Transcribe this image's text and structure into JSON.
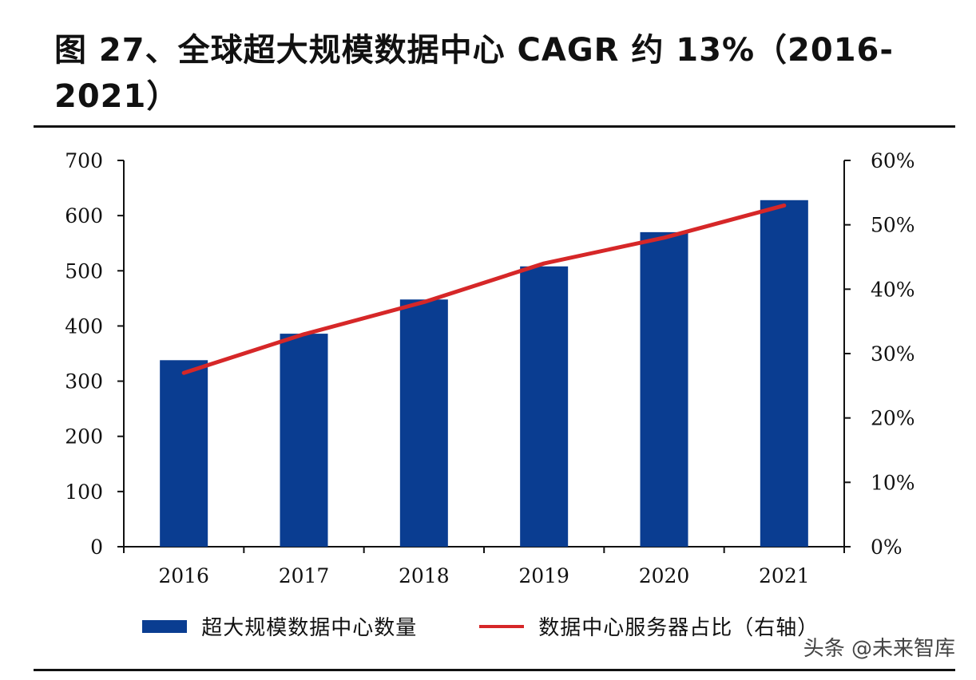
{
  "title": "图 27、全球超大规模数据中心 CAGR 约 13%（2016-2021）",
  "watermark": "头条 @未来智库",
  "colors": {
    "bar": "#0a3d91",
    "line": "#d62728",
    "axis": "#111111"
  },
  "chart_data": {
    "type": "bar",
    "categories": [
      "2016",
      "2017",
      "2018",
      "2019",
      "2020",
      "2021"
    ],
    "series": [
      {
        "name": "超大规模数据中心数量",
        "type": "bar",
        "axis": "left",
        "values": [
          338,
          386,
          448,
          508,
          570,
          628
        ]
      },
      {
        "name": "数据中心服务器占比（右轴）",
        "type": "line",
        "axis": "right",
        "values": [
          0.27,
          0.33,
          0.38,
          0.44,
          0.48,
          0.53
        ]
      }
    ],
    "y_left": {
      "ylim": [
        0,
        700
      ],
      "ticks": [
        "0",
        "100",
        "200",
        "300",
        "400",
        "500",
        "600",
        "700"
      ]
    },
    "y_right": {
      "ylim": [
        0,
        0.6
      ],
      "ticks": [
        "0%",
        "10%",
        "20%",
        "30%",
        "40%",
        "50%",
        "60%"
      ]
    },
    "legend": "bottom",
    "grid": false
  }
}
